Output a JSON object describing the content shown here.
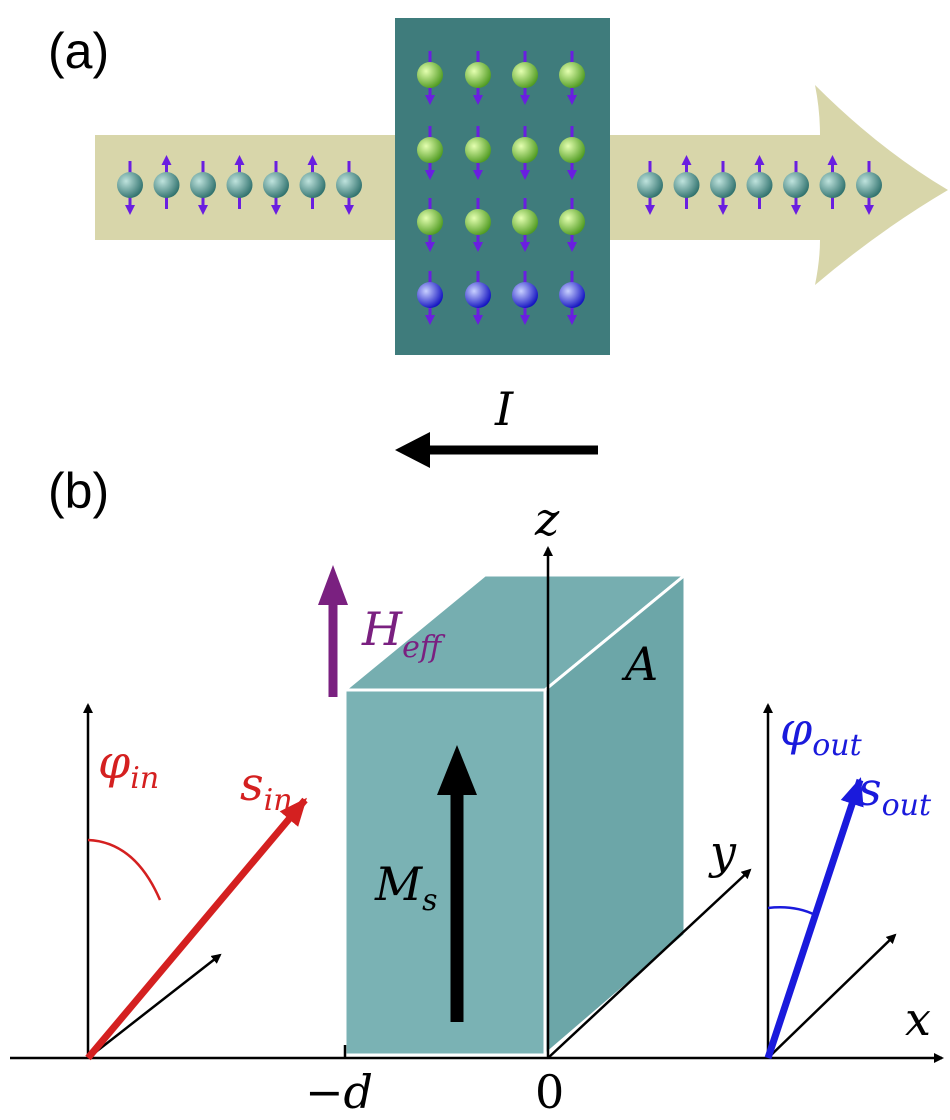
{
  "panel_a": {
    "label": "(a)",
    "current_label": "I"
  },
  "panel_b": {
    "label": "(b)",
    "axes": {
      "z": "z",
      "y": "y",
      "x": "x",
      "minus_d": "−d",
      "zero": "0"
    },
    "field": {
      "symbol": "H",
      "subscript": "eff"
    },
    "region": "A",
    "magnetization": {
      "symbol": "M",
      "subscript": "s"
    },
    "incoming": {
      "angle": {
        "symbol": "φ",
        "subscript": "in"
      },
      "spin": {
        "symbol": "s",
        "subscript": "in"
      }
    },
    "outgoing": {
      "angle": {
        "symbol": "φ",
        "subscript": "out"
      },
      "spin": {
        "symbol": "s",
        "subscript": "out"
      }
    }
  }
}
